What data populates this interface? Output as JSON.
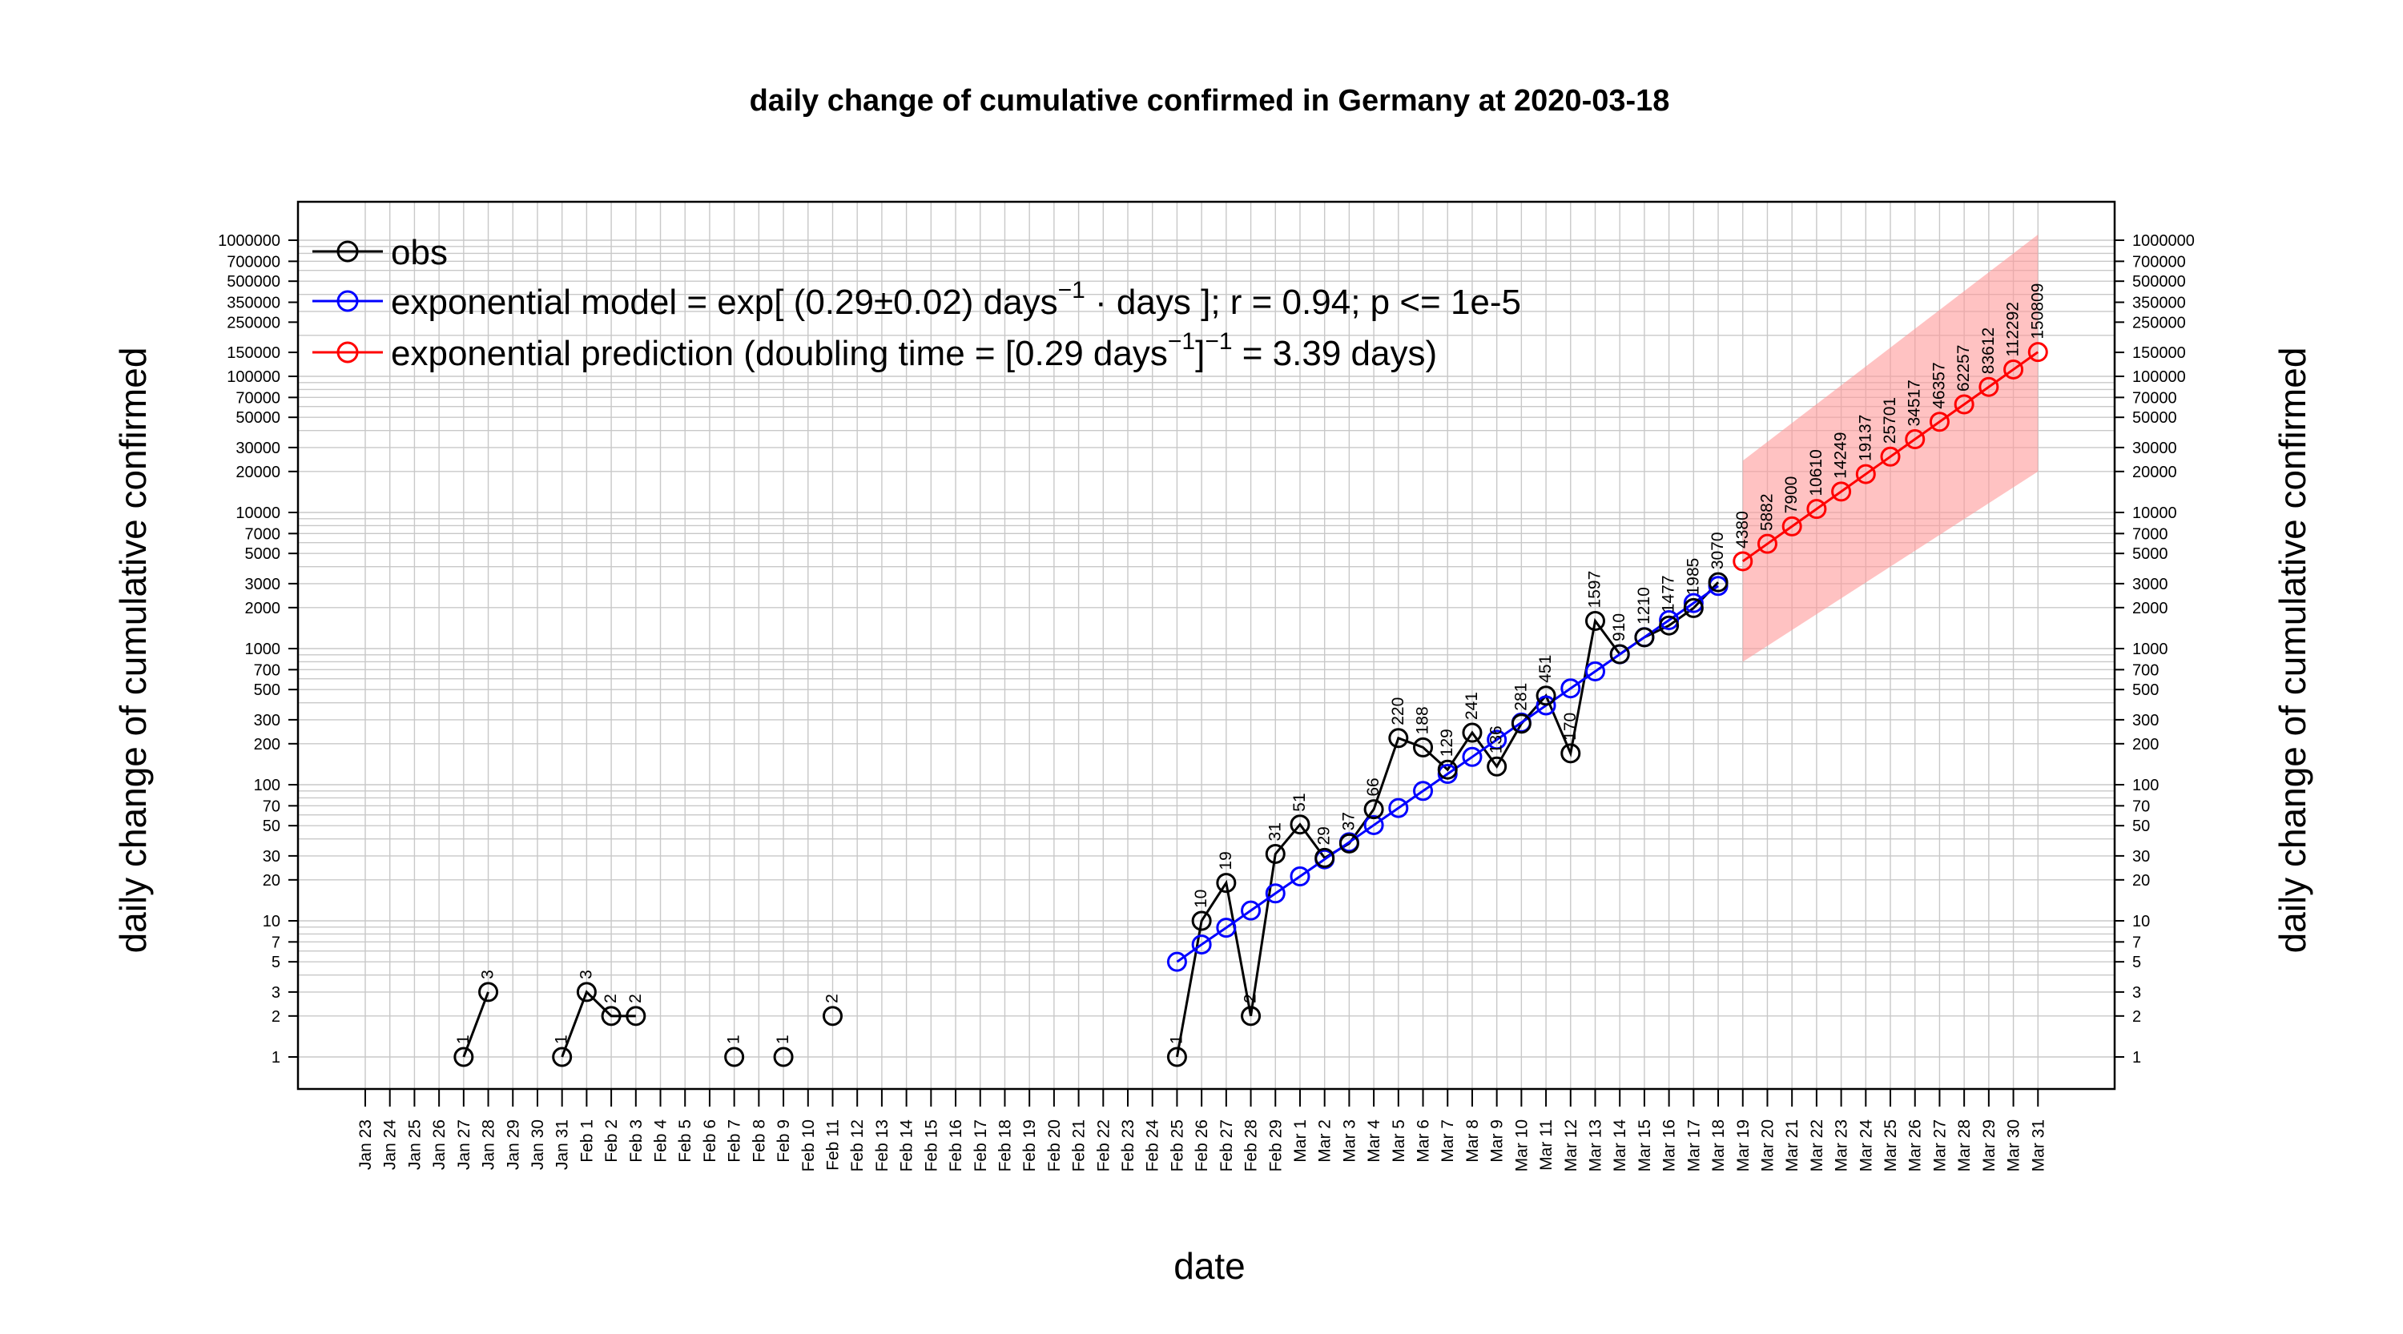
{
  "chart_data": {
    "type": "line",
    "title": "daily change of cumulative confirmed in Germany at 2020-03-18",
    "xlabel": "date",
    "ylabel": "daily change of cumulative confirmed",
    "y_scale": "log",
    "ylim": [
      1,
      1000000
    ],
    "grid": true,
    "legend_position": "top-left",
    "x": [
      "Jan 23",
      "Jan 24",
      "Jan 25",
      "Jan 26",
      "Jan 27",
      "Jan 28",
      "Jan 29",
      "Jan 30",
      "Jan 31",
      "Feb 1",
      "Feb 2",
      "Feb 3",
      "Feb 4",
      "Feb 5",
      "Feb 6",
      "Feb 7",
      "Feb 8",
      "Feb 9",
      "Feb 10",
      "Feb 11",
      "Feb 12",
      "Feb 13",
      "Feb 14",
      "Feb 15",
      "Feb 16",
      "Feb 17",
      "Feb 18",
      "Feb 19",
      "Feb 20",
      "Feb 21",
      "Feb 22",
      "Feb 23",
      "Feb 24",
      "Feb 25",
      "Feb 26",
      "Feb 27",
      "Feb 28",
      "Feb 29",
      "Mar 1",
      "Mar 2",
      "Mar 3",
      "Mar 4",
      "Mar 5",
      "Mar 6",
      "Mar 7",
      "Mar 8",
      "Mar 9",
      "Mar 10",
      "Mar 11",
      "Mar 12",
      "Mar 13",
      "Mar 14",
      "Mar 15",
      "Mar 16",
      "Mar 17",
      "Mar 18",
      "Mar 19",
      "Mar 20",
      "Mar 21",
      "Mar 22",
      "Mar 23",
      "Mar 24",
      "Mar 25",
      "Mar 26",
      "Mar 27",
      "Mar 28",
      "Mar 29",
      "Mar 30",
      "Mar 31"
    ],
    "y_ticks": [
      1,
      2,
      3,
      5,
      7,
      10,
      20,
      30,
      50,
      70,
      100,
      200,
      300,
      500,
      700,
      1000,
      2000,
      3000,
      5000,
      7000,
      10000,
      20000,
      30000,
      50000,
      70000,
      100000,
      150000,
      250000,
      350000,
      500000,
      700000,
      1000000
    ],
    "y_tick_labels": [
      "1",
      "2",
      "3",
      "5",
      "7",
      "10",
      "20",
      "30",
      "50",
      "70",
      "100",
      "200",
      "300",
      "500",
      "700",
      "1000",
      "2000",
      "3000",
      "5000",
      "7000",
      "10000",
      "20000",
      "30000",
      "50000",
      "70000",
      "100000",
      "150000",
      "250000",
      "350000",
      "500000",
      "700000",
      "1000000"
    ],
    "series": [
      {
        "name": "obs",
        "color": "#000000",
        "segments": [
          [
            {
              "x": "Jan 27",
              "y": 1,
              "label": "1"
            },
            {
              "x": "Jan 28",
              "y": 3,
              "label": "3"
            }
          ],
          [
            {
              "x": "Jan 31",
              "y": 1,
              "label": "1"
            },
            {
              "x": "Feb 1",
              "y": 3,
              "label": "3"
            },
            {
              "x": "Feb 2",
              "y": 2,
              "label": "2"
            },
            {
              "x": "Feb 3",
              "y": 2,
              "label": "2"
            }
          ],
          [
            {
              "x": "Feb 7",
              "y": 1,
              "label": "1"
            }
          ],
          [
            {
              "x": "Feb 9",
              "y": 1,
              "label": "1"
            }
          ],
          [
            {
              "x": "Feb 11",
              "y": 2,
              "label": "2"
            }
          ],
          [
            {
              "x": "Feb 25",
              "y": 1,
              "label": "1"
            },
            {
              "x": "Feb 26",
              "y": 10,
              "label": "10"
            },
            {
              "x": "Feb 27",
              "y": 19,
              "label": "19"
            },
            {
              "x": "Feb 28",
              "y": 2,
              "label": "2"
            },
            {
              "x": "Feb 29",
              "y": 31,
              "label": "31"
            },
            {
              "x": "Mar 1",
              "y": 51,
              "label": "51"
            },
            {
              "x": "Mar 2",
              "y": 29,
              "label": "29"
            },
            {
              "x": "Mar 3",
              "y": 37,
              "label": "37"
            },
            {
              "x": "Mar 4",
              "y": 66,
              "label": "66"
            },
            {
              "x": "Mar 5",
              "y": 220,
              "label": "220"
            },
            {
              "x": "Mar 6",
              "y": 188,
              "label": "188"
            },
            {
              "x": "Mar 7",
              "y": 129,
              "label": "129"
            },
            {
              "x": "Mar 8",
              "y": 241,
              "label": "241"
            },
            {
              "x": "Mar 9",
              "y": 136,
              "label": "136"
            },
            {
              "x": "Mar 10",
              "y": 281,
              "label": "281"
            },
            {
              "x": "Mar 11",
              "y": 451,
              "label": "451"
            },
            {
              "x": "Mar 12",
              "y": 170,
              "label": "170"
            },
            {
              "x": "Mar 13",
              "y": 1597,
              "label": "1597"
            },
            {
              "x": "Mar 14",
              "y": 910,
              "label": "910"
            },
            {
              "x": "Mar 15",
              "y": 1210,
              "label": "1210"
            },
            {
              "x": "Mar 16",
              "y": 1477,
              "label": "1477"
            },
            {
              "x": "Mar 17",
              "y": 1985,
              "label": "1985"
            },
            {
              "x": "Mar 18",
              "y": 3070,
              "label": "3070"
            }
          ]
        ]
      },
      {
        "name": "exponential model",
        "color": "#0000ff",
        "points": [
          {
            "x": "Feb 25",
            "y": 5
          },
          {
            "x": "Feb 26",
            "y": 6.7
          },
          {
            "x": "Feb 27",
            "y": 8.9
          },
          {
            "x": "Feb 28",
            "y": 11.9
          },
          {
            "x": "Feb 29",
            "y": 15.9
          },
          {
            "x": "Mar 1",
            "y": 21.2
          },
          {
            "x": "Mar 2",
            "y": 28.3
          },
          {
            "x": "Mar 3",
            "y": 37.8
          },
          {
            "x": "Mar 4",
            "y": 50.5
          },
          {
            "x": "Mar 5",
            "y": 67.4
          },
          {
            "x": "Mar 6",
            "y": 90
          },
          {
            "x": "Mar 7",
            "y": 120
          },
          {
            "x": "Mar 8",
            "y": 160
          },
          {
            "x": "Mar 9",
            "y": 214
          },
          {
            "x": "Mar 10",
            "y": 286
          },
          {
            "x": "Mar 11",
            "y": 382
          },
          {
            "x": "Mar 12",
            "y": 510
          },
          {
            "x": "Mar 13",
            "y": 680
          },
          {
            "x": "Mar 14",
            "y": 908
          },
          {
            "x": "Mar 15",
            "y": 1212
          },
          {
            "x": "Mar 16",
            "y": 1618
          },
          {
            "x": "Mar 17",
            "y": 2160
          },
          {
            "x": "Mar 18",
            "y": 2884
          }
        ]
      },
      {
        "name": "exponential prediction",
        "color": "#ff0000",
        "points": [
          {
            "x": "Mar 19",
            "y": 4380,
            "label": "4380"
          },
          {
            "x": "Mar 20",
            "y": 5882,
            "label": "5882"
          },
          {
            "x": "Mar 21",
            "y": 7900,
            "label": "7900"
          },
          {
            "x": "Mar 22",
            "y": 10610,
            "label": "10610"
          },
          {
            "x": "Mar 23",
            "y": 14249,
            "label": "14249"
          },
          {
            "x": "Mar 24",
            "y": 19137,
            "label": "19137"
          },
          {
            "x": "Mar 25",
            "y": 25701,
            "label": "25701"
          },
          {
            "x": "Mar 26",
            "y": 34517,
            "label": "34517"
          },
          {
            "x": "Mar 27",
            "y": 46357,
            "label": "46357"
          },
          {
            "x": "Mar 28",
            "y": 62257,
            "label": "62257"
          },
          {
            "x": "Mar 29",
            "y": 83612,
            "label": "83612"
          },
          {
            "x": "Mar 30",
            "y": 112292,
            "label": "112292"
          },
          {
            "x": "Mar 31",
            "y": 150809,
            "label": "150809"
          }
        ],
        "band": {
          "lower_first": 800,
          "upper_first": 24000,
          "lower_last": 20000,
          "upper_last": 1100000
        }
      }
    ]
  },
  "legend": {
    "obs": "obs",
    "model": {
      "a": "exponential model = exp[ (0.29",
      "pm": "±",
      "b": "0.02) days",
      "sup": "−1",
      "c": " · ",
      "d": " days ]; r = 0.94; p <= 1e-5"
    },
    "prediction": {
      "a": "exponential prediction (doubling time = [0.29 days",
      "sup1": "−1",
      "b": "]",
      "sup2": "−1",
      "c": " = 3.39 days)"
    }
  }
}
